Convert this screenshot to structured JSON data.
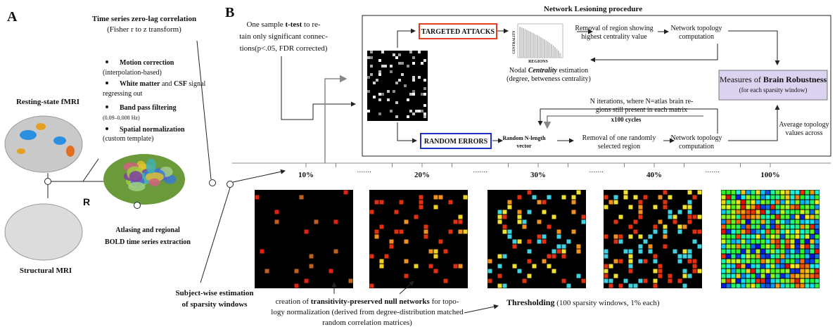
{
  "panel_a": {
    "letter": "A",
    "resting_state": "Resting-state fMRI",
    "structural": "Structural MRI",
    "hemisphere": "R",
    "atlasing": [
      "Atlasing and regional",
      "BOLD time series extraction"
    ],
    "correlation": [
      "Time series zero-lag correlation",
      "(Fisher r to z transform)"
    ],
    "preprocessing": {
      "motion": {
        "bold": "Motion correction",
        "detail": "(interpolation-based)"
      },
      "nuisance": {
        "bold": "White matter",
        "mid": " and ",
        "bold2": "CSF",
        "tail": " signal",
        "detail": "regressing out"
      },
      "filter": {
        "bold": "Band pass filtering",
        "detail": "(0.09–0.008 Hz)"
      },
      "normalization": {
        "bold": "Spatial normalization",
        "detail": "(custom template)"
      }
    }
  },
  "panel_b": {
    "letter": "B",
    "ttest": {
      "pre": "One sample ",
      "bold": "t-test",
      "post": " to re-",
      "lines": [
        "tain only significant connec-",
        "tions(p<.05, FDR corrected)"
      ]
    },
    "lesioning": {
      "title": "Network Lesioning procedure",
      "targeted": "TARGETED ATTACKS",
      "random": "RANDOM ERRORS",
      "centrality_axis": "CENTRALITY",
      "regions_axis": "REGIONS",
      "removal_highest": [
        "Removal of region showing",
        "highest centrality value"
      ],
      "topology": [
        "Network topology",
        "computation"
      ],
      "nodal": {
        "pre": "Nodal ",
        "bold": "Centrality",
        "post": " estimation",
        "line2": "(degree, betweness centrality)"
      },
      "iterations": [
        "N iterations, where N=atlas brain re-",
        "gions still present in each matrix"
      ],
      "cycles": "x100 cycles",
      "random_vector": [
        "Random N-length",
        "vector"
      ],
      "removal_random": [
        "Removal of one randomly",
        "selected region"
      ],
      "robustness": {
        "pre": "Measures of ",
        "bold": "Brain Robustness",
        "sub": "(for each sparsity window)"
      },
      "average": [
        "Average topology",
        "values across"
      ]
    },
    "sparsity": {
      "windows": [
        "10%",
        "20%",
        "30%",
        "40%",
        "100%"
      ],
      "ellipsis": "……."
    },
    "subject_wise": [
      "Subject-wise estimation",
      "of sparsity windows"
    ],
    "null_networks": {
      "pre": "creation of ",
      "bold": "transitivity-preserved null networks",
      "post": " for topo-",
      "lines": [
        "logy normalization (derived from degree-distribution matched",
        "random correlation matrices)"
      ]
    },
    "thresholding": {
      "bold": "Thresholding",
      "post": " (100 sparsity windows, 1% each)"
    }
  }
}
